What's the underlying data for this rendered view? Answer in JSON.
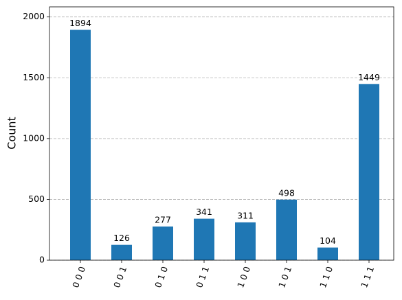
{
  "chart_data": {
    "type": "bar",
    "ylabel": "Count",
    "categories": [
      "0 0 0",
      "0 0 1",
      "0 1 0",
      "0 1 1",
      "1 0 0",
      "1 0 1",
      "1 1 0",
      "1 1 1"
    ],
    "values": [
      1894,
      126,
      277,
      341,
      311,
      498,
      104,
      1449
    ],
    "color": "#1f77b4",
    "ylim": [
      0,
      2083
    ],
    "yticks": [
      0,
      500,
      1000,
      1500,
      2000
    ],
    "grid": true,
    "show_values": true
  }
}
